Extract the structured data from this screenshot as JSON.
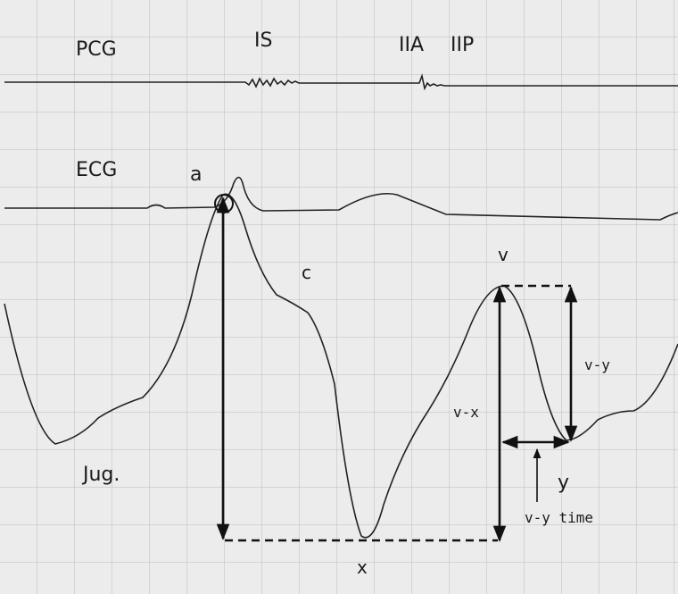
{
  "tracings": {
    "pcg": "PCG",
    "ecg": "ECG",
    "jugular": "Jug."
  },
  "sounds": {
    "first": "IS",
    "second_aortic": "IIA",
    "second_pulmonic": "IIP"
  },
  "waves": {
    "a": "a",
    "c": "c",
    "v": "v",
    "x": "x",
    "y": "y"
  },
  "measurements": {
    "v_x": "v-x",
    "v_y": "v-y",
    "v_y_time": "v-y time"
  }
}
